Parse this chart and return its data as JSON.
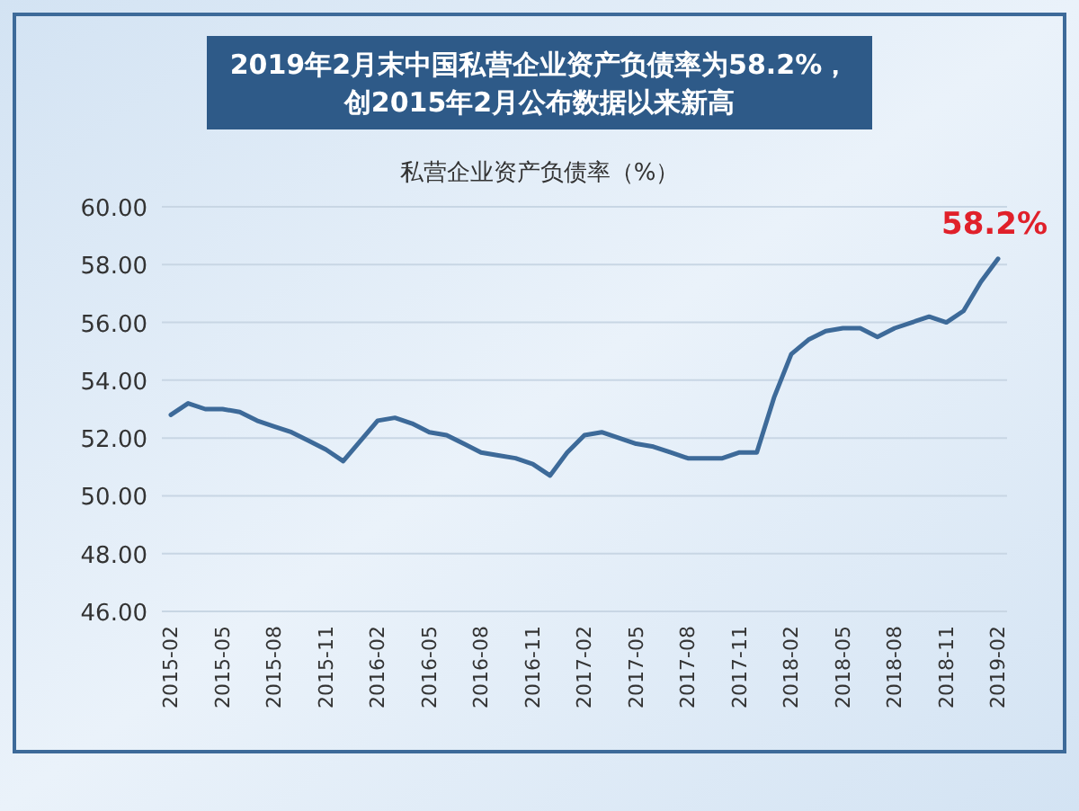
{
  "chart_data": {
    "type": "line",
    "title": "2019年2月末中国私营企业资产负债率为58.2%，创2015年2月公布数据以来新高",
    "ylabel": "私营企业资产负债率（%）",
    "categories": [
      "2015-02",
      null,
      null,
      "2015-05",
      null,
      null,
      "2015-08",
      null,
      null,
      "2015-11",
      null,
      null,
      "2016-02",
      null,
      null,
      "2016-05",
      null,
      null,
      "2016-08",
      null,
      null,
      "2016-11",
      null,
      null,
      "2017-02",
      null,
      null,
      "2017-05",
      null,
      null,
      "2017-08",
      null,
      null,
      "2017-11",
      null,
      null,
      "2018-02",
      null,
      null,
      "2018-05",
      null,
      null,
      "2018-08",
      null,
      null,
      "2018-11",
      null,
      null,
      "2019-02"
    ],
    "series": [
      {
        "color": "#3d6a99",
        "values": [
          52.8,
          53.2,
          53.0,
          53.0,
          52.9,
          52.6,
          52.4,
          52.2,
          51.9,
          51.6,
          51.2,
          51.9,
          52.6,
          52.7,
          52.5,
          52.2,
          52.1,
          51.8,
          51.5,
          51.4,
          51.3,
          51.1,
          50.7,
          51.5,
          52.1,
          52.2,
          52.0,
          51.8,
          51.7,
          51.5,
          51.3,
          51.3,
          51.3,
          51.5,
          51.5,
          53.4,
          54.9,
          55.4,
          55.7,
          55.8,
          55.8,
          55.5,
          55.8,
          56.0,
          56.2,
          56.0,
          56.4,
          57.4,
          58.2
        ],
        "value_labels": [
          null,
          null,
          null,
          null,
          null,
          null,
          null,
          null,
          null,
          null,
          null,
          null,
          null,
          null,
          null,
          null,
          null,
          null,
          null,
          null,
          null,
          null,
          null,
          null,
          null,
          null,
          null,
          null,
          null,
          null,
          null,
          null,
          null,
          null,
          null,
          null,
          null,
          null,
          null,
          null,
          null,
          null,
          null,
          null,
          null,
          null,
          null,
          null,
          "58.2%"
        ]
      }
    ],
    "ylim": [
      46,
      60
    ],
    "yticks": [
      {
        "value": 46,
        "label": "46.00"
      },
      {
        "value": 48,
        "label": "48.00"
      },
      {
        "value": 50,
        "label": "50.00"
      },
      {
        "value": 52,
        "label": "52.00"
      },
      {
        "value": 54,
        "label": "54.00"
      },
      {
        "value": 56,
        "label": "56.00"
      },
      {
        "value": 58,
        "label": "58.00"
      },
      {
        "value": 60,
        "label": "60.00"
      }
    ],
    "grid": "y"
  }
}
